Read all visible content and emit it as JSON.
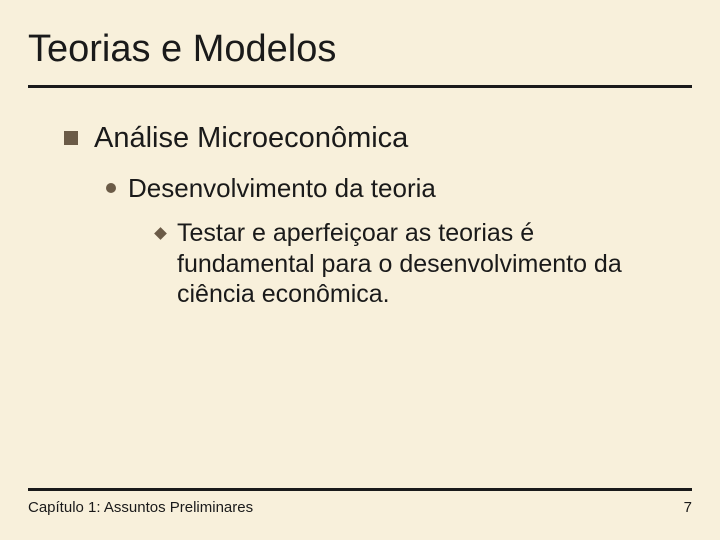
{
  "colors": {
    "background": "#f8f0db",
    "text": "#1a1a1a",
    "bullet": "#6b5b47",
    "rule": "#1a1a1a"
  },
  "typography": {
    "family": "Arial",
    "title_size_pt": 38,
    "lvl1_size_pt": 29,
    "lvl2_size_pt": 26,
    "lvl3_size_pt": 25,
    "footer_size_pt": 15
  },
  "title": "Teorias e Modelos",
  "body": {
    "lvl1": "Análise Microeconômica",
    "lvl2": "Desenvolvimento da teoria",
    "lvl3": "Testar e aperfeiçoar as teorias é fundamental para o desenvolvimento da ciência econômica."
  },
  "footer": {
    "chapter": "Capítulo 1: Assuntos Preliminares",
    "page": "7"
  }
}
